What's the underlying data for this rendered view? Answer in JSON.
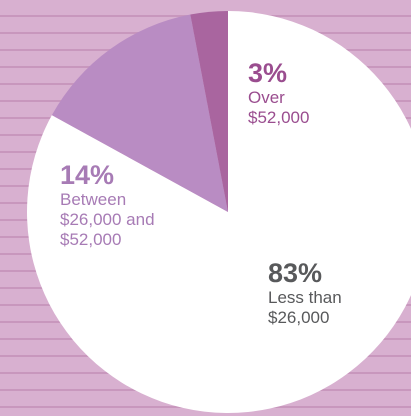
{
  "chart_data": {
    "type": "pie",
    "categories": [
      "Less than $26,000",
      "Between $26,000 and $52,000",
      "Over $52,000"
    ],
    "values": [
      83,
      14,
      3
    ],
    "value_labels": [
      "83%",
      "14%",
      "3%"
    ],
    "colors": [
      "#ffffff",
      "#b98cc3",
      "#a9659f"
    ],
    "label_colors": [
      "#58595b",
      "#a77bb5",
      "#9a4d8f"
    ]
  }
}
